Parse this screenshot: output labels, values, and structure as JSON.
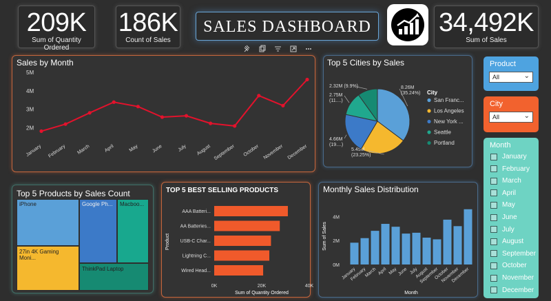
{
  "kpis": {
    "qty": {
      "value": "209K",
      "label": "Sum of Quantity Ordered"
    },
    "count": {
      "value": "186K",
      "label": "Count of Sales"
    },
    "sales": {
      "value": "34,492K",
      "label": "Sum of Sales"
    }
  },
  "title": "SALES DASHBOARD",
  "visual_header_icons": [
    "pin-icon",
    "copy-icon",
    "filter-icon",
    "expand-icon",
    "more-icon"
  ],
  "colors": {
    "line": "#e3122c",
    "bar_orange": "#f05a2b",
    "bar_blue": "#5aa0d8",
    "product_slicer": "#4ea3e0",
    "city_slicer": "#f2622e",
    "month_slicer": "#6ed3c3"
  },
  "sales_by_month": {
    "title": "Sales by Month"
  },
  "top_cities": {
    "title": "Top 5 Cities by Sales",
    "legend_title": "City"
  },
  "top_products_count": {
    "title": "Top 5 Products by Sales Count"
  },
  "best_selling": {
    "title": "TOP 5 BEST SELLING PRODUCTS"
  },
  "monthly_dist": {
    "title": "Monthly Sales Distribution"
  },
  "slicers": {
    "product": {
      "label": "Product",
      "value": "All"
    },
    "city": {
      "label": "City",
      "value": "All"
    },
    "month": {
      "label": "Month",
      "items": [
        "January",
        "February",
        "March",
        "April",
        "May",
        "June",
        "July",
        "August",
        "September",
        "October",
        "November",
        "December"
      ]
    }
  },
  "chart_data": [
    {
      "id": "sales_by_month",
      "type": "line",
      "title": "Sales by Month",
      "x": [
        "January",
        "February",
        "March",
        "April",
        "May",
        "June",
        "July",
        "August",
        "September",
        "October",
        "November",
        "December"
      ],
      "values": [
        1.82,
        2.2,
        2.81,
        3.39,
        3.15,
        2.58,
        2.65,
        2.24,
        2.1,
        3.74,
        3.2,
        4.61
      ],
      "y_ticks": [
        "2M",
        "3M",
        "4M",
        "5M"
      ],
      "ylim": [
        1.5,
        5
      ]
    },
    {
      "id": "top_cities",
      "type": "pie",
      "title": "Top 5 Cities by Sales",
      "legend_title": "City",
      "labels": [
        "San Franc...",
        "Los Angeles",
        "New York ...",
        "Seattle",
        "Portland"
      ],
      "values": [
        8.26,
        5.45,
        4.66,
        2.75,
        2.32
      ],
      "colors": [
        "#5aa0d8",
        "#f5b82e",
        "#3c7ac8",
        "#20a88e",
        "#168a72"
      ],
      "data_labels": [
        {
          "lines": [
            "8.26M",
            "(35.24%)"
          ]
        },
        {
          "lines": [
            "5.45M",
            "(23.25%)"
          ]
        },
        {
          "lines": [
            "4.66M",
            "(19....)"
          ]
        },
        {
          "lines": [
            "2.75M",
            "(11....)"
          ]
        },
        {
          "lines": [
            "2.32M (9.9%)"
          ]
        }
      ]
    },
    {
      "id": "top_products_count",
      "type": "treemap",
      "title": "Top 5 Products by Sales Count",
      "labels": [
        "iPhone",
        "Google Ph...",
        "Macboo...",
        "27in 4K Gaming Moni...",
        "ThinkPad Laptop"
      ],
      "colors": [
        "#5aa0d8",
        "#3c7ac8",
        "#18a88e",
        "#f5b82e",
        "#168a72"
      ]
    },
    {
      "id": "best_selling",
      "type": "bar",
      "title": "TOP 5 BEST SELLING PRODUCTS",
      "categories": [
        "AAA Batteri...",
        "AA Batteries...",
        "USB-C Char...",
        "Lightning C...",
        "Wired Head..."
      ],
      "values": [
        31000,
        27600,
        23900,
        23200,
        20600
      ],
      "xlabel": "Sum of Quantity Ordered",
      "ylabel": "Product",
      "x_ticks": [
        "0K",
        "20K",
        "40K"
      ],
      "xlim": [
        0,
        40000
      ]
    },
    {
      "id": "monthly_dist",
      "type": "bar",
      "title": "Monthly Sales Distribution",
      "categories": [
        "January",
        "February",
        "March",
        "April",
        "May",
        "June",
        "July",
        "August",
        "September",
        "October",
        "November",
        "December"
      ],
      "values": [
        1.82,
        2.2,
        2.81,
        3.39,
        3.15,
        2.58,
        2.65,
        2.24,
        2.1,
        3.74,
        3.2,
        4.61
      ],
      "xlabel": "Month",
      "ylabel": "Sum of Sales",
      "y_ticks": [
        "0M",
        "2M",
        "4M"
      ],
      "ylim": [
        0,
        5
      ]
    }
  ]
}
